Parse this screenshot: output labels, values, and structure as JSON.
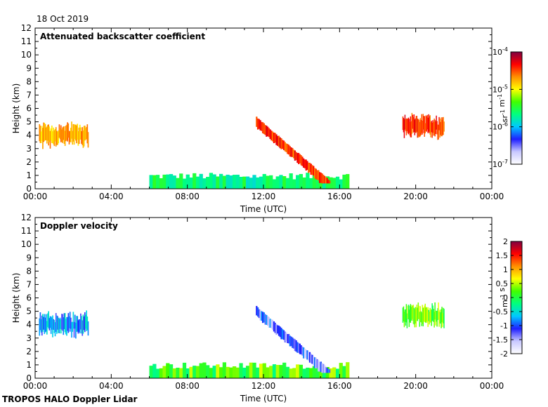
{
  "date_label": "18 Oct 2019",
  "footer_label": "TROPOS HALO Doppler Lidar",
  "chart_data": [
    {
      "type": "heatmap",
      "title": "Attenuated backscatter coefficient",
      "xlabel": "Time (UTC)",
      "ylabel": "Height (km)",
      "xlim": [
        0,
        24
      ],
      "ylim": [
        0,
        12
      ],
      "x_ticks": [
        "00:00",
        "04:00",
        "08:00",
        "12:00",
        "16:00",
        "20:00",
        "00:00"
      ],
      "y_ticks": [
        "0",
        "1",
        "2",
        "3",
        "4",
        "5",
        "6",
        "7",
        "8",
        "9",
        "10",
        "11",
        "12"
      ],
      "colorbar": {
        "scale": "log",
        "range": [
          1e-07,
          0.0001
        ],
        "ticks": [
          "10",
          "10",
          "10",
          "10"
        ],
        "tick_exponents": [
          "-4",
          "-5",
          "-6",
          "-7"
        ],
        "unit_base": [
          "sr",
          "m"
        ],
        "unit_exponents": [
          "-1",
          "-1"
        ],
        "colors": [
          "#ffffff",
          "#c8c8ff",
          "#2020ff",
          "#00c8ff",
          "#00ff80",
          "#40ff00",
          "#ffff00",
          "#ff9000",
          "#ff0000",
          "#800040"
        ]
      },
      "features": [
        {
          "name": "boundary layer aerosol",
          "t_start": 6.0,
          "t_end": 16.5,
          "h_bottom": 0.0,
          "h_top": 1.0,
          "level": 0.45
        },
        {
          "name": "descending cloud layer",
          "t_start": 11.6,
          "t_end": 15.5,
          "h_bottom": 0.5,
          "h_top": 5.3,
          "level": 0.85
        },
        {
          "name": "early morning cloud",
          "t_start": 0.2,
          "t_end": 2.8,
          "h_bottom": 2.8,
          "h_top": 5.2,
          "level": 0.75
        },
        {
          "name": "evening cloud",
          "t_start": 19.3,
          "t_end": 21.5,
          "h_bottom": 3.5,
          "h_top": 5.8,
          "level": 0.85
        }
      ]
    },
    {
      "type": "heatmap",
      "title": "Doppler velocity",
      "xlabel": "Time (UTC)",
      "ylabel": "Height (km)",
      "xlim": [
        0,
        24
      ],
      "ylim": [
        0,
        12
      ],
      "x_ticks": [
        "00:00",
        "04:00",
        "08:00",
        "12:00",
        "16:00",
        "20:00",
        "00:00"
      ],
      "y_ticks": [
        "0",
        "1",
        "2",
        "3",
        "4",
        "5",
        "6",
        "7",
        "8",
        "9",
        "10",
        "11",
        "12"
      ],
      "colorbar": {
        "scale": "linear",
        "range": [
          -2,
          2
        ],
        "ticks": [
          "2",
          "1.5",
          "1",
          "0.5",
          "0",
          "-0.5",
          "-1",
          "-1.5",
          "-2"
        ],
        "unit_base": [
          "m",
          "s"
        ],
        "unit_exponents": [
          "-1"
        ],
        "colors": [
          "#ffffff",
          "#c8c8ff",
          "#2020ff",
          "#00c8ff",
          "#00ff80",
          "#40ff00",
          "#ffff00",
          "#ff9000",
          "#ff0000",
          "#800040"
        ]
      },
      "features": [
        {
          "name": "boundary layer",
          "t_start": 6.0,
          "t_end": 16.5,
          "h_bottom": 0.0,
          "h_top": 1.0,
          "value": 0.2
        },
        {
          "name": "descending cloud layer",
          "t_start": 11.6,
          "t_end": 15.5,
          "h_bottom": 0.5,
          "h_top": 5.3,
          "value": -1.2
        },
        {
          "name": "early morning cloud",
          "t_start": 0.2,
          "t_end": 2.8,
          "h_bottom": 2.8,
          "h_top": 5.2,
          "value": -0.8
        },
        {
          "name": "evening cloud",
          "t_start": 19.3,
          "t_end": 21.5,
          "h_bottom": 3.5,
          "h_top": 5.8,
          "value": 0.3
        }
      ]
    }
  ]
}
